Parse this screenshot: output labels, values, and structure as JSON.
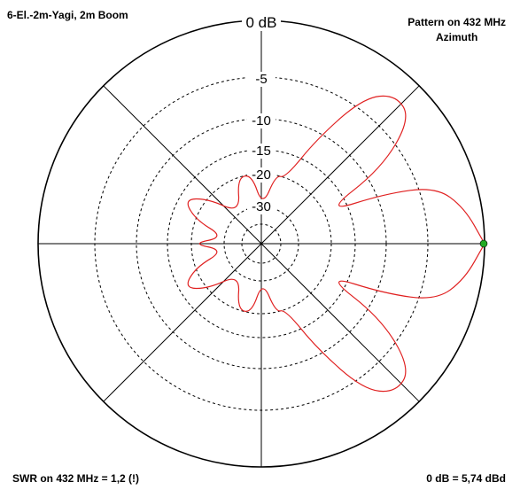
{
  "header": {
    "antenna_label": "6-El.-2m-Yagi, 2m Boom",
    "pattern_title": "Pattern on 432 MHz",
    "pattern_subtitle": "Azimuth"
  },
  "footer": {
    "swr_text": "SWR on 432 MHz = 1,2 (!)",
    "reference_text": "0 dB = 5,74 dBd"
  },
  "colors": {
    "pattern": "#e02020",
    "marker": "#22aa22",
    "grid": "#000000"
  },
  "chart_data": {
    "type": "polar",
    "title": "Pattern on 432 MHz",
    "subtitle": "Azimuth",
    "radial_unit": "dB",
    "ring_labels": [
      "0 dB",
      "-5",
      "-10",
      "-15",
      "-20",
      "-30"
    ],
    "ring_levels_db": [
      0,
      -5,
      -10,
      -15,
      -20,
      -30
    ],
    "rings_dashed": true,
    "spokes_deg": [
      0,
      45,
      90,
      135,
      180,
      225,
      270,
      315
    ],
    "max_marker": {
      "azimuth_deg": 0,
      "gain_db": 0
    },
    "pattern": {
      "azimuth_deg": [
        0,
        10,
        18,
        22,
        26,
        32,
        40,
        48,
        55,
        62,
        70,
        78,
        88,
        98,
        110,
        125,
        140,
        150,
        160,
        170,
        180
      ],
      "gain_db": [
        0,
        -1.5,
        -3.5,
        -9,
        -20,
        -8,
        -2.5,
        -2,
        -4,
        -11,
        -20,
        -20,
        -30,
        -20,
        -20,
        -30,
        -20,
        -16,
        -20,
        -30,
        -20
      ]
    }
  }
}
